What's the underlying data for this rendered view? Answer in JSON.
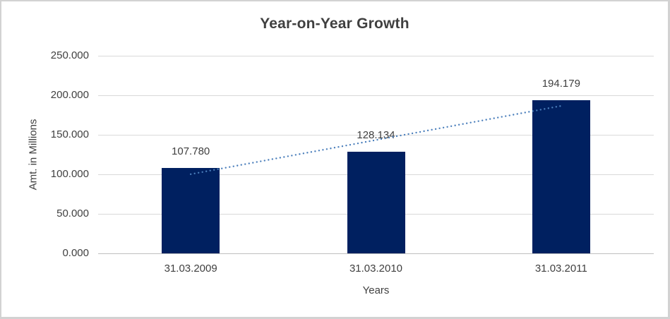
{
  "chart_data": {
    "type": "bar",
    "title": "Year-on-Year Growth",
    "xlabel": "Years",
    "ylabel": "Amt. in Millions",
    "categories": [
      "31.03.2009",
      "31.03.2010",
      "31.03.2011"
    ],
    "values": [
      107.78,
      128.134,
      194.179
    ],
    "value_labels": [
      "107.780",
      "128.134",
      "194.179"
    ],
    "ylim": [
      0,
      250
    ],
    "yticks": [
      {
        "v": 0,
        "label": "0.000"
      },
      {
        "v": 50,
        "label": "50.000"
      },
      {
        "v": 100,
        "label": "100.000"
      },
      {
        "v": 150,
        "label": "150.000"
      },
      {
        "v": 200,
        "label": "200.000"
      },
      {
        "v": 250,
        "label": "250.000"
      }
    ],
    "grid": true,
    "legend_position": "none",
    "trendline": {
      "type": "linear",
      "style": "dotted",
      "color": "#4a7ebb"
    },
    "colors": {
      "bar": "#002060",
      "gridline": "#d9d9d9",
      "axis_line": "#bfbfbf",
      "text": "#404040",
      "background": "#ffffff",
      "frame_border": "#d2d2d2"
    }
  }
}
